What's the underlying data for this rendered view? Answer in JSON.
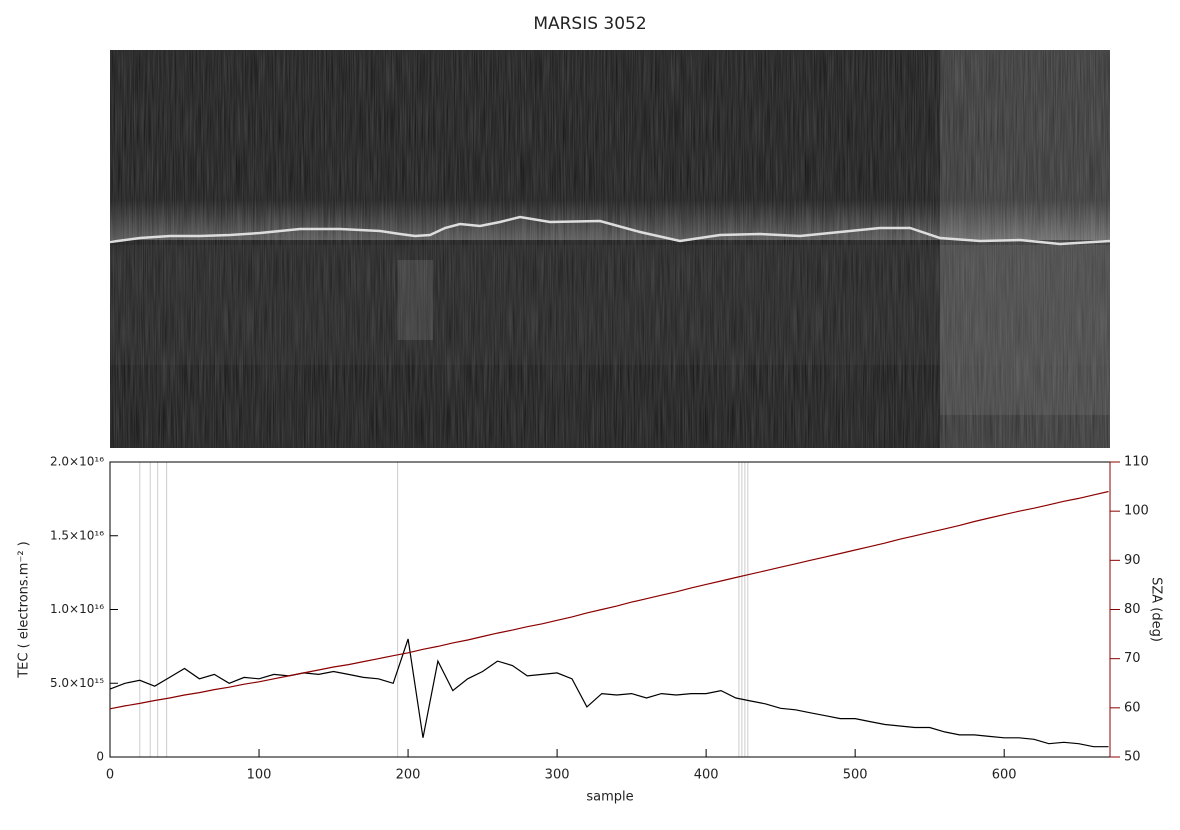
{
  "chart_data": {
    "type": "line",
    "title": "MARSIS 3052",
    "x_label": "sample",
    "y_label": "TEC ( electrons.m⁻² )",
    "y2_label": "SZA (deg)",
    "xlim": [
      0,
      671
    ],
    "xticks": [
      0,
      100,
      200,
      300,
      400,
      500,
      600
    ],
    "ylim": [
      0,
      2e+16
    ],
    "yticks": [
      0,
      {
        "value": 5000000000000000.0,
        "label": "5.0×10¹⁵"
      },
      {
        "value": 1e+16,
        "label": "1.0×10¹⁶"
      },
      {
        "value": 1.5e+16,
        "label": "1.5×10¹⁶"
      },
      {
        "value": 2e+16,
        "label": "2.0×10¹⁶"
      }
    ],
    "y2lim": [
      50,
      110
    ],
    "y2ticks": [
      50,
      60,
      70,
      80,
      90,
      100,
      110
    ],
    "y2color": "#8b0000",
    "vlines": [
      20,
      27,
      32,
      38,
      193,
      422,
      424,
      426,
      428
    ],
    "vline_color": "#cccccc",
    "x": [
      0,
      10,
      20,
      30,
      40,
      50,
      60,
      70,
      80,
      90,
      100,
      110,
      120,
      130,
      140,
      150,
      160,
      170,
      180,
      190,
      200,
      210,
      220,
      230,
      240,
      250,
      260,
      270,
      280,
      290,
      300,
      310,
      320,
      330,
      340,
      350,
      360,
      370,
      380,
      390,
      400,
      410,
      420,
      430,
      440,
      450,
      460,
      470,
      480,
      490,
      500,
      510,
      520,
      530,
      540,
      550,
      560,
      570,
      580,
      590,
      600,
      610,
      620,
      630,
      640,
      650,
      660,
      670
    ],
    "series": [
      {
        "name": "TEC",
        "color": "#000000",
        "axis": "y",
        "values": [
          4600000000000000.0,
          5000000000000000.0,
          5200000000000000.0,
          4800000000000000.0,
          5400000000000000.0,
          6000000000000000.0,
          5300000000000000.0,
          5600000000000000.0,
          5000000000000000.0,
          5400000000000000.0,
          5300000000000000.0,
          5600000000000000.0,
          5500000000000000.0,
          5700000000000000.0,
          5600000000000000.0,
          5800000000000000.0,
          5600000000000000.0,
          5400000000000000.0,
          5300000000000000.0,
          5000000000000000.0,
          8000000000000000.0,
          1300000000000000.0,
          6500000000000000.0,
          4500000000000000.0,
          5300000000000000.0,
          5800000000000000.0,
          6500000000000000.0,
          6200000000000000.0,
          5500000000000000.0,
          5600000000000000.0,
          5700000000000000.0,
          5300000000000000.0,
          3400000000000000.0,
          4300000000000000.0,
          4200000000000000.0,
          4300000000000000.0,
          4000000000000000.0,
          4300000000000000.0,
          4200000000000000.0,
          4300000000000000.0,
          4300000000000000.0,
          4500000000000000.0,
          4000000000000000.0,
          3800000000000000.0,
          3600000000000000.0,
          3300000000000000.0,
          3200000000000000.0,
          3000000000000000.0,
          2800000000000000.0,
          2600000000000000.0,
          2600000000000000.0,
          2400000000000000.0,
          2200000000000000.0,
          2100000000000000.0,
          2000000000000000.0,
          2000000000000000.0,
          1700000000000000.0,
          1500000000000000.0,
          1500000000000000.0,
          1400000000000000.0,
          1300000000000000.0,
          1300000000000000.0,
          1200000000000000.0,
          900000000000000.0,
          1000000000000000.0,
          900000000000000.0,
          700000000000000.0,
          700000000000000.0
        ]
      },
      {
        "name": "SZA",
        "color": "#8b0000",
        "axis": "y2",
        "values": [
          59.8,
          60.4,
          60.9,
          61.5,
          62.0,
          62.6,
          63.1,
          63.7,
          64.2,
          64.8,
          65.3,
          65.9,
          66.5,
          67.1,
          67.7,
          68.3,
          68.8,
          69.4,
          70.0,
          70.6,
          71.2,
          71.9,
          72.5,
          73.2,
          73.8,
          74.5,
          75.2,
          75.8,
          76.5,
          77.1,
          77.8,
          78.5,
          79.3,
          80.0,
          80.7,
          81.5,
          82.2,
          82.9,
          83.6,
          84.4,
          85.1,
          85.8,
          86.5,
          87.2,
          87.9,
          88.6,
          89.3,
          90.0,
          90.7,
          91.4,
          92.1,
          92.8,
          93.5,
          94.3,
          95.0,
          95.7,
          96.4,
          97.1,
          97.9,
          98.6,
          99.3,
          100.0,
          100.6,
          101.3,
          102.0,
          102.6,
          103.3,
          104.0
        ]
      }
    ]
  }
}
